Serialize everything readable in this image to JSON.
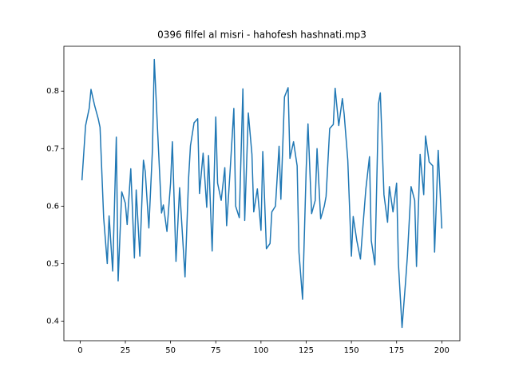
{
  "chart_data": {
    "type": "line",
    "title": "0396 filfel al misri - hahofesh hashnati.mp3",
    "x": [
      1,
      3,
      5,
      6,
      8,
      10,
      11,
      13,
      15,
      16,
      18,
      20,
      21,
      23,
      25,
      26,
      28,
      30,
      31,
      33,
      35,
      36,
      38,
      40,
      41,
      43,
      45,
      46,
      48,
      50,
      51,
      53,
      55,
      56,
      58,
      60,
      61,
      63,
      65,
      66,
      68,
      70,
      71,
      73,
      75,
      76,
      78,
      80,
      81,
      83,
      85,
      86,
      88,
      90,
      91,
      93,
      95,
      96,
      98,
      100,
      101,
      103,
      105,
      106,
      108,
      110,
      111,
      113,
      115,
      116,
      118,
      120,
      121,
      123,
      125,
      126,
      128,
      130,
      131,
      133,
      135,
      136,
      138,
      140,
      141,
      143,
      145,
      146,
      148,
      150,
      151,
      153,
      155,
      156,
      158,
      160,
      161,
      163,
      165,
      166,
      168,
      170,
      171,
      173,
      175,
      176,
      178,
      180,
      181,
      183,
      185,
      186,
      188,
      190,
      191,
      193,
      195,
      196,
      198,
      200
    ],
    "series": [
      {
        "color": "#1f77b4",
        "values": [
          0.645,
          0.74,
          0.77,
          0.803,
          0.775,
          0.752,
          0.737,
          0.58,
          0.5,
          0.583,
          0.487,
          0.72,
          0.47,
          0.625,
          0.605,
          0.568,
          0.665,
          0.51,
          0.628,
          0.513,
          0.68,
          0.66,
          0.562,
          0.7,
          0.855,
          0.72,
          0.588,
          0.602,
          0.556,
          0.64,
          0.712,
          0.504,
          0.632,
          0.58,
          0.477,
          0.65,
          0.705,
          0.745,
          0.752,
          0.622,
          0.692,
          0.598,
          0.688,
          0.522,
          0.755,
          0.64,
          0.61,
          0.667,
          0.566,
          0.665,
          0.77,
          0.6,
          0.58,
          0.804,
          0.575,
          0.762,
          0.69,
          0.59,
          0.63,
          0.558,
          0.695,
          0.526,
          0.535,
          0.59,
          0.6,
          0.704,
          0.612,
          0.79,
          0.806,
          0.683,
          0.712,
          0.67,
          0.52,
          0.438,
          0.665,
          0.743,
          0.587,
          0.61,
          0.7,
          0.578,
          0.6,
          0.617,
          0.735,
          0.742,
          0.805,
          0.74,
          0.787,
          0.76,
          0.68,
          0.513,
          0.582,
          0.54,
          0.508,
          0.55,
          0.63,
          0.686,
          0.54,
          0.498,
          0.778,
          0.797,
          0.62,
          0.572,
          0.634,
          0.59,
          0.64,
          0.5,
          0.389,
          0.47,
          0.515,
          0.634,
          0.61,
          0.495,
          0.69,
          0.62,
          0.722,
          0.677,
          0.67,
          0.52,
          0.697,
          0.561
        ]
      }
    ],
    "xlim": [
      -9,
      210
    ],
    "ylim": [
      0.366,
      0.878
    ],
    "xticks": [
      0,
      25,
      50,
      75,
      100,
      125,
      150,
      175,
      200
    ],
    "yticks": [
      0.4,
      0.5,
      0.6,
      0.7,
      0.8
    ]
  }
}
